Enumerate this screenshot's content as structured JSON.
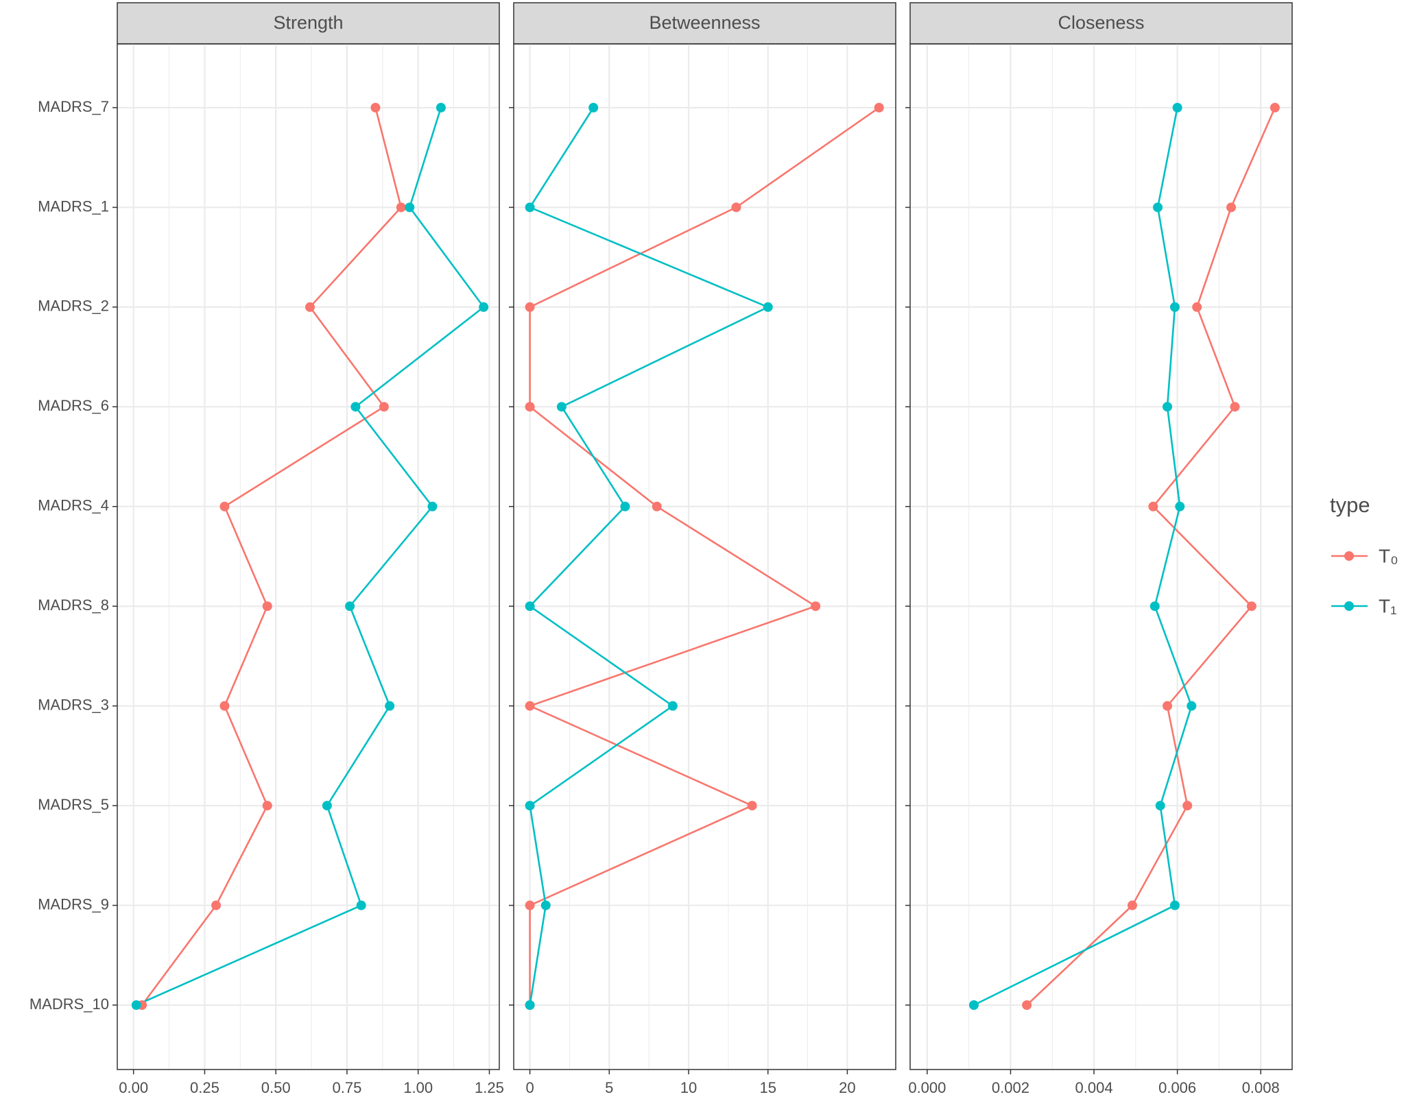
{
  "chart_data": {
    "type": "line",
    "orientation": "horizontal",
    "grid": true,
    "legend": "right",
    "legend_title": "type",
    "categories": [
      "MADRS_7",
      "MADRS_1",
      "MADRS_2",
      "MADRS_6",
      "MADRS_4",
      "MADRS_8",
      "MADRS_3",
      "MADRS_5",
      "MADRS_9",
      "MADRS_10"
    ],
    "series": [
      {
        "name": "T₀",
        "color": "#F8766D"
      },
      {
        "name": "T₁",
        "color": "#00BFC4"
      }
    ],
    "panels": [
      {
        "title": "Strength",
        "xlim": [
          -0.057,
          1.285
        ],
        "xticks": [
          {
            "value": 0,
            "label": "0.00"
          },
          {
            "value": 0.25,
            "label": "0.25"
          },
          {
            "value": 0.5,
            "label": "0.50"
          },
          {
            "value": 0.75,
            "label": "0.75"
          },
          {
            "value": 1,
            "label": "1.00"
          },
          {
            "value": 1.25,
            "label": "1.25"
          }
        ],
        "values": [
          [
            0.85,
            0.94,
            0.62,
            0.88,
            0.32,
            0.47,
            0.32,
            0.47,
            0.29,
            0.03
          ],
          [
            1.08,
            0.97,
            1.23,
            0.78,
            1.05,
            0.76,
            0.9,
            0.68,
            0.8,
            0.01
          ]
        ]
      },
      {
        "title": "Betweenness",
        "xlim": [
          -1.02,
          23.05
        ],
        "xticks": [
          0,
          5,
          10,
          15,
          20
        ],
        "values": [
          [
            22,
            13,
            0,
            0,
            8,
            18,
            0,
            14,
            0,
            0
          ],
          [
            4,
            0,
            15,
            2,
            6,
            0,
            9,
            0,
            1,
            0
          ]
        ]
      },
      {
        "title": "Closeness",
        "xlim": [
          -0.000409,
          0.008753
        ],
        "xticks": [
          {
            "value": 0,
            "label": "0.000"
          },
          {
            "value": 0.002,
            "label": "0.002"
          },
          {
            "value": 0.004,
            "label": "0.004"
          },
          {
            "value": 0.006,
            "label": "0.006"
          },
          {
            "value": 0.008,
            "label": "0.008"
          }
        ],
        "values": [
          [
            0.00834,
            0.00729,
            0.00647,
            0.00738,
            0.00542,
            0.00778,
            0.00576,
            0.00624,
            0.00492,
            0.00239
          ],
          [
            0.006,
            0.00553,
            0.00594,
            0.00576,
            0.00606,
            0.00546,
            0.00634,
            0.00559,
            0.00594,
            0.00112
          ]
        ]
      }
    ]
  }
}
